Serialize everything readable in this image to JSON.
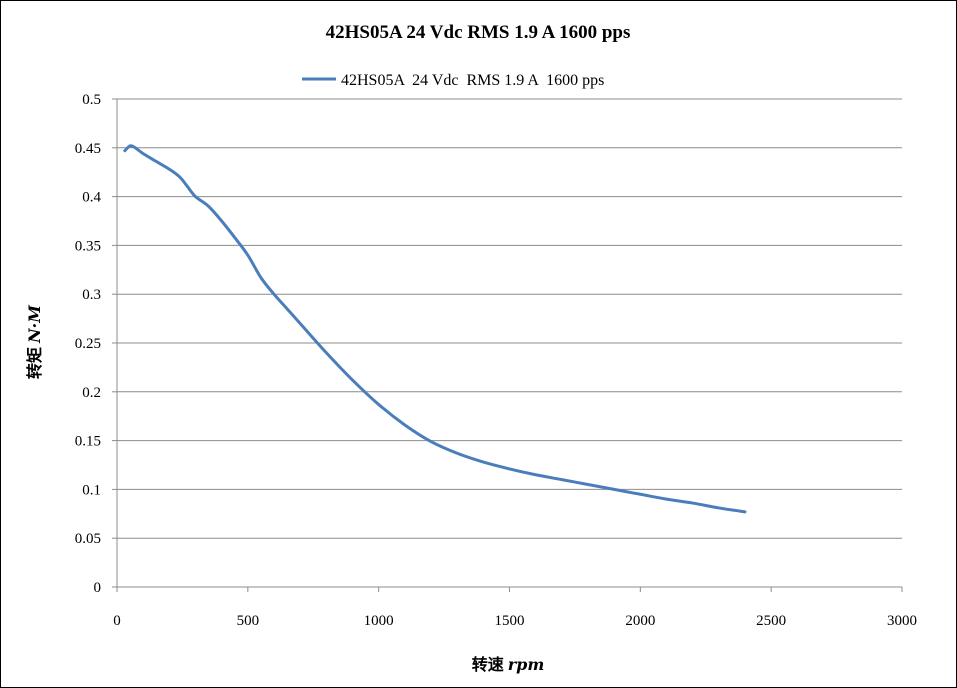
{
  "chart_data": {
    "type": "line",
    "title": "42HS05A  24 Vdc  RMS 1.9 A  1600 pps",
    "xlabel": "转速",
    "xlabel_unit": "rpm",
    "ylabel": "转矩",
    "ylabel_unit": "N·M",
    "xlim": [
      0,
      3000
    ],
    "ylim": [
      0,
      0.5
    ],
    "x_ticks": [
      "0",
      "500",
      "1000",
      "1500",
      "2000",
      "2500",
      "3000"
    ],
    "y_ticks": [
      "0",
      "0.05",
      "0.1",
      "0.15",
      "0.2",
      "0.25",
      "0.3",
      "0.35",
      "0.4",
      "0.45",
      "0.5"
    ],
    "grid": "horizontal",
    "legend_position": "top-center",
    "series": [
      {
        "name": "42HS05A  24 Vdc  RMS 1.9 A  1600 pps",
        "color": "#4A7EBB",
        "x": [
          30,
          50,
          70,
          100,
          150,
          200,
          240,
          270,
          300,
          350,
          400,
          450,
          500,
          550,
          600,
          650,
          700,
          800,
          900,
          1000,
          1100,
          1200,
          1300,
          1400,
          1500,
          1600,
          1700,
          1800,
          1900,
          2000,
          2100,
          2200,
          2300,
          2400
        ],
        "y": [
          0.447,
          0.452,
          0.45,
          0.444,
          0.436,
          0.428,
          0.42,
          0.41,
          0.4,
          0.39,
          0.375,
          0.358,
          0.34,
          0.317,
          0.3,
          0.285,
          0.27,
          0.24,
          0.212,
          0.187,
          0.166,
          0.149,
          0.137,
          0.128,
          0.121,
          0.115,
          0.11,
          0.105,
          0.1,
          0.095,
          0.09,
          0.086,
          0.081,
          0.077
        ]
      }
    ]
  }
}
